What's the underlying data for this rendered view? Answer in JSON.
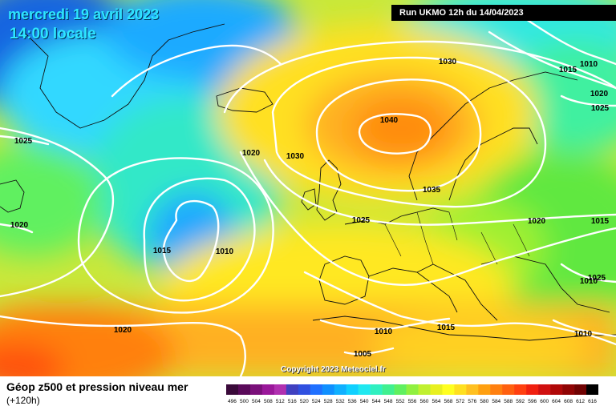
{
  "header": {
    "date": "mercredi 19 avril 2023",
    "time": "14:00 locale",
    "run": "Run UKMO 12h du 14/04/2023"
  },
  "copyright": "Copyright 2023 Meteociel.fr",
  "footer": {
    "title": "Géop z500 et pression niveau mer",
    "subtitle": "(+120h)"
  },
  "scale": {
    "values": [
      "496",
      "500",
      "504",
      "508",
      "512",
      "516",
      "520",
      "524",
      "528",
      "532",
      "536",
      "540",
      "544",
      "548",
      "552",
      "556",
      "560",
      "564",
      "568",
      "572",
      "576",
      "580",
      "584",
      "588",
      "592",
      "596",
      "600",
      "604",
      "608",
      "612",
      "616"
    ],
    "colors": [
      "#3a0a3a",
      "#5a0a5a",
      "#7a107a",
      "#9a189a",
      "#b030b0",
      "#4040c0",
      "#3050e0",
      "#2070ff",
      "#1090ff",
      "#10b0ff",
      "#10d0ff",
      "#20e8f0",
      "#30f0c0",
      "#40f090",
      "#60f060",
      "#90f040",
      "#c0f030",
      "#e8f020",
      "#ffff20",
      "#ffe020",
      "#ffc020",
      "#ffa010",
      "#ff8010",
      "#ff6010",
      "#ff4010",
      "#f02010",
      "#d01010",
      "#b00808",
      "#900404",
      "#700202",
      "#000000"
    ]
  },
  "isobars": [
    {
      "label": "1040"
    },
    {
      "label": "1030"
    },
    {
      "label": "1030"
    },
    {
      "label": "1035"
    },
    {
      "label": "1025"
    },
    {
      "label": "1020"
    },
    {
      "label": "1015"
    },
    {
      "label": "1010"
    },
    {
      "label": "1025"
    },
    {
      "label": "1020"
    },
    {
      "label": "1015"
    },
    {
      "label": "1010"
    },
    {
      "label": "1010"
    },
    {
      "label": "1015"
    },
    {
      "label": "1005"
    },
    {
      "label": "1020"
    },
    {
      "label": "1015"
    },
    {
      "label": "1020"
    },
    {
      "label": "1025"
    },
    {
      "label": "1010"
    },
    {
      "label": "1025"
    },
    {
      "label": "1020"
    },
    {
      "label": "1010"
    }
  ]
}
